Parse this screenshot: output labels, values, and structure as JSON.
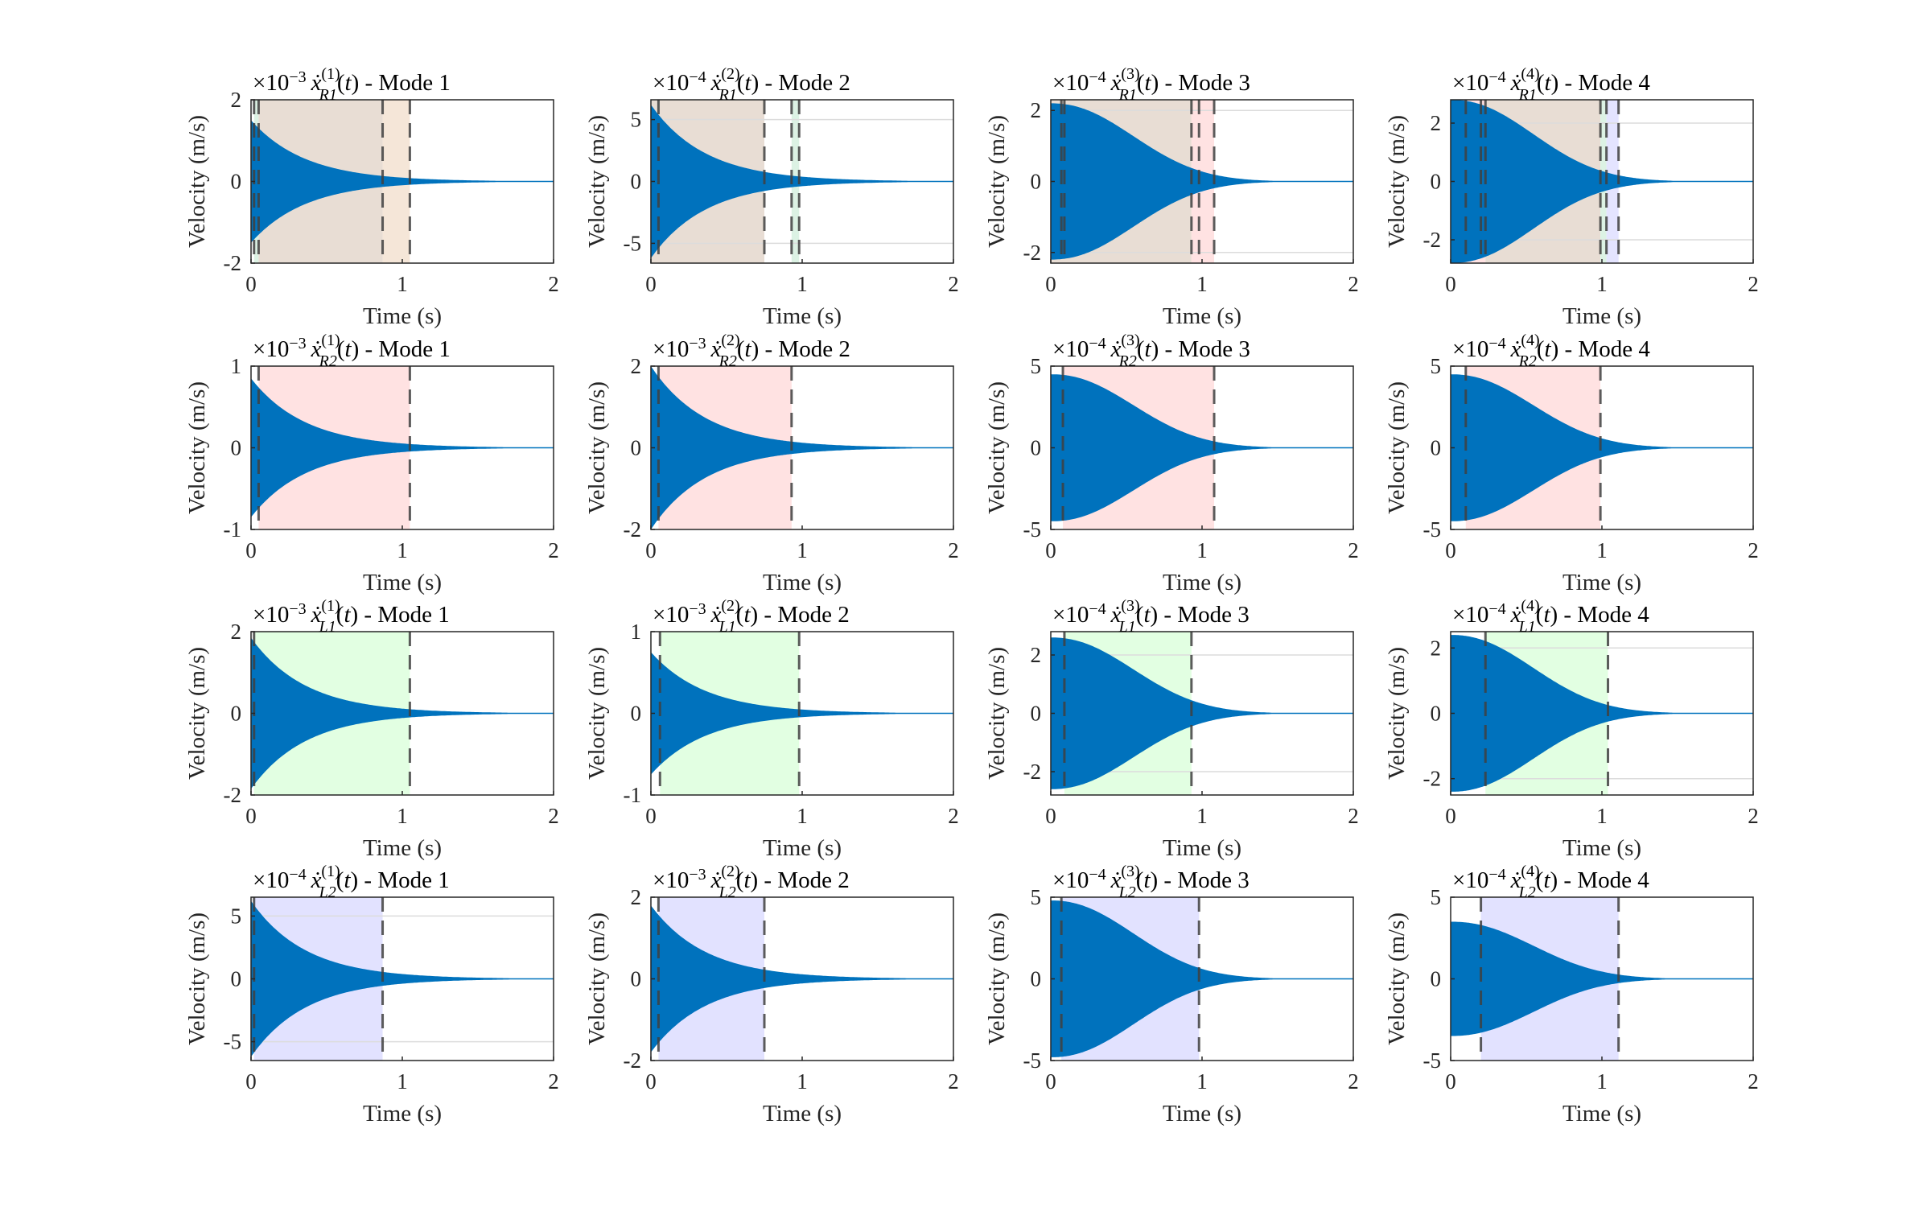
{
  "chart_data": {
    "type": "area",
    "layout": "4x4 grid of subplots",
    "xlabel": "Time (s)",
    "ylabel": "Velocity (m/s)",
    "xlim": [
      0,
      2
    ],
    "xticks": [
      0,
      1,
      2
    ],
    "signal_color": "#0072BD",
    "dashed_line_color": "#404040",
    "region_colors": {
      "R1": "#e8ddd4",
      "R2": "#ffe2e2",
      "L1": "#e2ffe2",
      "L2": "#e2e2ff",
      "R1_green": "#dcf2e4",
      "R1_red": "#ffe2e2",
      "R1_blue": "#e4e4ff",
      "R1_orange": "#f5e6d8"
    },
    "subplots": [
      {
        "exponent": "-3",
        "sub": "R1",
        "sup": "(1)",
        "mode": "Mode 1",
        "ylim": [
          -2,
          2
        ],
        "yticks": [
          -2,
          0,
          2
        ],
        "amplitude": 1.5,
        "regions": [
          {
            "x": [
              0.02,
              0.05
            ],
            "color": "R1_green"
          },
          {
            "x": [
              0.05,
              0.87
            ],
            "color": "R1"
          },
          {
            "x": [
              0.87,
              1.05
            ],
            "color": "R1_orange"
          }
        ],
        "dashed": [
          0.02,
          0.05,
          0.87,
          1.05
        ],
        "grid": []
      },
      {
        "exponent": "-4",
        "sub": "R1",
        "sup": "(2)",
        "mode": "Mode 2",
        "ylim": [
          -6.6,
          6.6
        ],
        "yticks": [
          -5,
          0,
          5
        ],
        "amplitude": 6.2,
        "regions": [
          {
            "x": [
              0,
              0.75
            ],
            "color": "R1"
          },
          {
            "x": [
              0.93,
              0.98
            ],
            "color": "R1_green"
          }
        ],
        "dashed": [
          0.05,
          0.75,
          0.93,
          0.98
        ],
        "grid": [
          -5,
          5
        ]
      },
      {
        "exponent": "-4",
        "sub": "R1",
        "sup": "(3)",
        "mode": "Mode 3",
        "ylim": [
          -2.3,
          2.3
        ],
        "yticks": [
          -2,
          0,
          2
        ],
        "amplitude": 2.2,
        "regions": [
          {
            "x": [
              0,
              0.93
            ],
            "color": "R1"
          },
          {
            "x": [
              0.93,
              1.08
            ],
            "color": "R1_red"
          }
        ],
        "dashed": [
          0.07,
          0.09,
          0.93,
          0.98,
          1.08
        ],
        "grid": [
          -2,
          2
        ]
      },
      {
        "exponent": "-4",
        "sub": "R1",
        "sup": "(4)",
        "mode": "Mode 4",
        "ylim": [
          -2.8,
          2.8
        ],
        "yticks": [
          -2,
          0,
          2
        ],
        "amplitude": 2.8,
        "regions": [
          {
            "x": [
              0,
              0.23
            ],
            "color": "R1_red"
          },
          {
            "x": [
              0.23,
              0.99
            ],
            "color": "R1"
          },
          {
            "x": [
              0.99,
              1.03
            ],
            "color": "R1_green"
          },
          {
            "x": [
              1.03,
              1.11
            ],
            "color": "R1_blue"
          }
        ],
        "dashed": [
          0.1,
          0.2,
          0.23,
          0.99,
          1.03,
          1.11
        ],
        "grid": [
          -2,
          2
        ]
      },
      {
        "exponent": "-3",
        "sub": "R2",
        "sup": "(1)",
        "mode": "Mode 1",
        "ylim": [
          -1,
          1
        ],
        "yticks": [
          -1,
          0,
          1
        ],
        "amplitude": 0.85,
        "regions": [
          {
            "x": [
              0.05,
              1.05
            ],
            "color": "R2"
          }
        ],
        "dashed": [
          0.05,
          1.05
        ],
        "grid": []
      },
      {
        "exponent": "-3",
        "sub": "R2",
        "sup": "(2)",
        "mode": "Mode 2",
        "ylim": [
          -2,
          2
        ],
        "yticks": [
          -2,
          0,
          2
        ],
        "amplitude": 2.0,
        "regions": [
          {
            "x": [
              0.05,
              0.93
            ],
            "color": "R2"
          }
        ],
        "dashed": [
          0.05,
          0.93
        ],
        "grid": []
      },
      {
        "exponent": "-4",
        "sub": "R2",
        "sup": "(3)",
        "mode": "Mode 3",
        "ylim": [
          -5,
          5
        ],
        "yticks": [
          -5,
          0,
          5
        ],
        "amplitude": 4.5,
        "regions": [
          {
            "x": [
              0.08,
              1.08
            ],
            "color": "R2"
          }
        ],
        "dashed": [
          0.08,
          1.08
        ],
        "grid": []
      },
      {
        "exponent": "-4",
        "sub": "R2",
        "sup": "(4)",
        "mode": "Mode 4",
        "ylim": [
          -5,
          5
        ],
        "yticks": [
          -5,
          0,
          5
        ],
        "amplitude": 4.5,
        "regions": [
          {
            "x": [
              0.1,
              0.99
            ],
            "color": "R2"
          }
        ],
        "dashed": [
          0.1,
          0.99
        ],
        "grid": []
      },
      {
        "exponent": "-3",
        "sub": "L1",
        "sup": "(1)",
        "mode": "Mode 1",
        "ylim": [
          -2,
          2
        ],
        "yticks": [
          -2,
          0,
          2
        ],
        "amplitude": 1.85,
        "regions": [
          {
            "x": [
              0.02,
              1.05
            ],
            "color": "L1"
          }
        ],
        "dashed": [
          0.02,
          1.05
        ],
        "grid": []
      },
      {
        "exponent": "-3",
        "sub": "L1",
        "sup": "(2)",
        "mode": "Mode 2",
        "ylim": [
          -1,
          1
        ],
        "yticks": [
          -1,
          0,
          1
        ],
        "amplitude": 0.75,
        "regions": [
          {
            "x": [
              0.06,
              0.98
            ],
            "color": "L1"
          }
        ],
        "dashed": [
          0.06,
          0.98
        ],
        "grid": []
      },
      {
        "exponent": "-4",
        "sub": "L1",
        "sup": "(3)",
        "mode": "Mode 3",
        "ylim": [
          -2.8,
          2.8
        ],
        "yticks": [
          -2,
          0,
          2
        ],
        "amplitude": 2.6,
        "regions": [
          {
            "x": [
              0.09,
              0.93
            ],
            "color": "L1"
          }
        ],
        "dashed": [
          0.09,
          0.93
        ],
        "grid": [
          -2,
          2
        ]
      },
      {
        "exponent": "-4",
        "sub": "L1",
        "sup": "(4)",
        "mode": "Mode 4",
        "ylim": [
          -2.5,
          2.5
        ],
        "yticks": [
          -2,
          0,
          2
        ],
        "amplitude": 2.4,
        "regions": [
          {
            "x": [
              0.23,
              1.04
            ],
            "color": "L1"
          }
        ],
        "dashed": [
          0.23,
          1.04
        ],
        "grid": [
          -2,
          2
        ]
      },
      {
        "exponent": "-4",
        "sub": "L2",
        "sup": "(1)",
        "mode": "Mode 1",
        "ylim": [
          -6.5,
          6.5
        ],
        "yticks": [
          -5,
          0,
          5
        ],
        "amplitude": 6.2,
        "regions": [
          {
            "x": [
              0.02,
              0.87
            ],
            "color": "L2"
          }
        ],
        "dashed": [
          0.02,
          0.87
        ],
        "grid": [
          -5,
          5
        ]
      },
      {
        "exponent": "-3",
        "sub": "L2",
        "sup": "(2)",
        "mode": "Mode 2",
        "ylim": [
          -2,
          2
        ],
        "yticks": [
          -2,
          0,
          2
        ],
        "amplitude": 1.8,
        "regions": [
          {
            "x": [
              0.05,
              0.75
            ],
            "color": "L2"
          }
        ],
        "dashed": [
          0.05,
          0.75
        ],
        "grid": []
      },
      {
        "exponent": "-4",
        "sub": "L2",
        "sup": "(3)",
        "mode": "Mode 3",
        "ylim": [
          -5,
          5
        ],
        "yticks": [
          -5,
          0,
          5
        ],
        "amplitude": 4.8,
        "regions": [
          {
            "x": [
              0.07,
              0.98
            ],
            "color": "L2"
          }
        ],
        "dashed": [
          0.07,
          0.98
        ],
        "grid": []
      },
      {
        "exponent": "-4",
        "sub": "L2",
        "sup": "(4)",
        "mode": "Mode 4",
        "ylim": [
          -5,
          5
        ],
        "yticks": [
          -5,
          0,
          5
        ],
        "amplitude": 3.5,
        "regions": [
          {
            "x": [
              0.2,
              1.11
            ],
            "color": "L2"
          }
        ],
        "dashed": [
          0.2,
          1.11
        ],
        "grid": []
      }
    ]
  }
}
